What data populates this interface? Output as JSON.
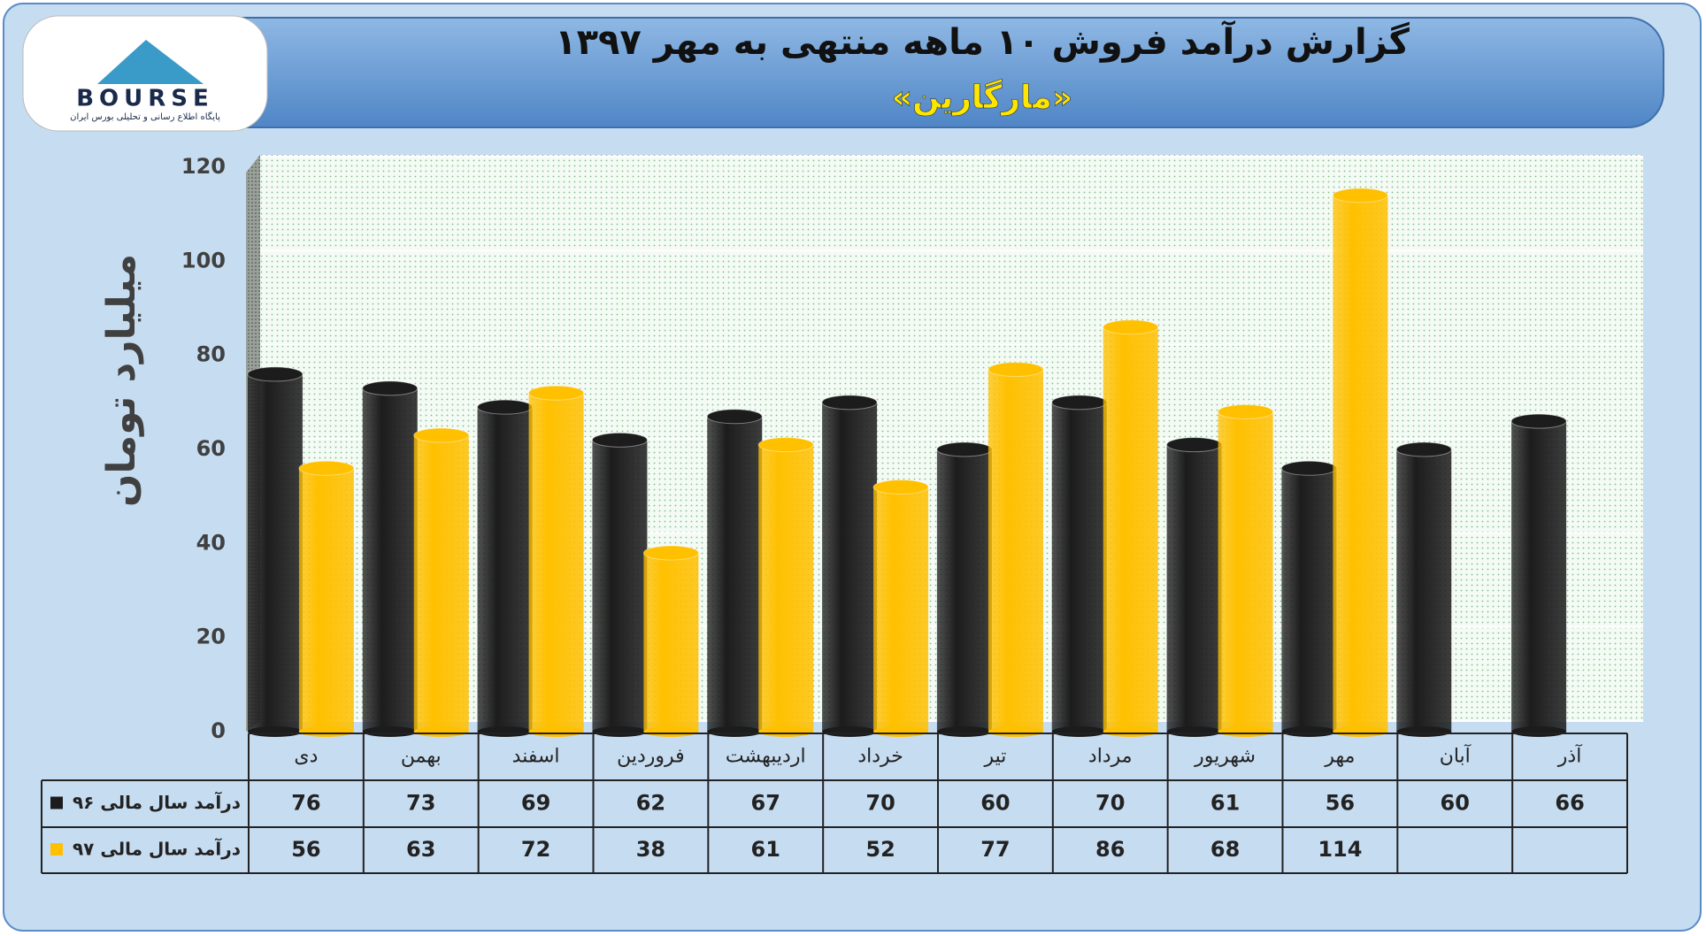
{
  "logo": {
    "name": "BOURSE",
    "tagline": "پایگاه اطلاع رسانی و تحلیلی بورس ایران"
  },
  "chart_data": {
    "type": "bar",
    "title": "گزارش درآمد فروش ۱۰ ماهه منتهی به مهر ۱۳۹۷",
    "subtitle": "«مارگارین»",
    "y_label": "میلیارد تومان",
    "categories": [
      "دی",
      "بهمن",
      "اسفند",
      "فروردین",
      "اردیبهشت",
      "خرداد",
      "تیر",
      "مرداد",
      "شهریور",
      "مهر",
      "آبان",
      "آذر"
    ],
    "series": [
      {
        "name": "درآمد سال مالی ۹۶",
        "color": "#1c1c1c",
        "values": [
          76,
          73,
          69,
          62,
          67,
          70,
          60,
          70,
          61,
          56,
          60,
          66
        ]
      },
      {
        "name": "درآمد سال مالی ۹۷",
        "color": "#ffc000",
        "values": [
          56,
          63,
          72,
          38,
          61,
          52,
          77,
          86,
          68,
          114,
          null,
          null
        ]
      }
    ],
    "ylim": [
      0,
      120
    ],
    "yticks": [
      0,
      20,
      40,
      60,
      80,
      100,
      120
    ],
    "grid": true
  }
}
